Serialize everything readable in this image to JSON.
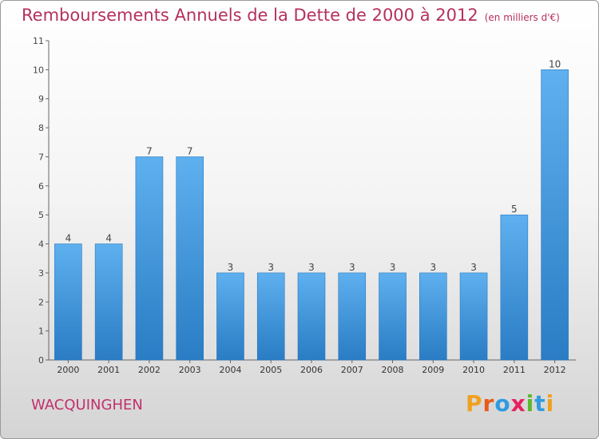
{
  "header": {
    "title": "Remboursements Annuels de la Dette de 2000 à 2012",
    "unit_note": "(en milliers d'€)"
  },
  "commune": "WACQUINGHEN",
  "logo": {
    "letters": [
      "P",
      "r",
      "o",
      "x",
      "i",
      "t",
      "i"
    ],
    "colors": [
      "#f0a020",
      "#e85a1a",
      "#2f9be0",
      "#e82060",
      "#5cb82e",
      "#2f9be0",
      "#f0a020"
    ]
  },
  "colors": {
    "bar_light": "#5eb0ef",
    "bar_dark": "#2a7cc4",
    "title": "#b5305f"
  },
  "chart_data": {
    "type": "bar",
    "categories": [
      "2000",
      "2001",
      "2002",
      "2003",
      "2004",
      "2005",
      "2006",
      "2007",
      "2008",
      "2009",
      "2010",
      "2011",
      "2012"
    ],
    "values": [
      4,
      4,
      7,
      7,
      3,
      3,
      3,
      3,
      3,
      3,
      3,
      5,
      10
    ],
    "yticks": [
      0,
      1,
      2,
      3,
      4,
      5,
      6,
      7,
      8,
      9,
      10,
      11
    ],
    "ylim": [
      0,
      11
    ],
    "grid": false
  }
}
